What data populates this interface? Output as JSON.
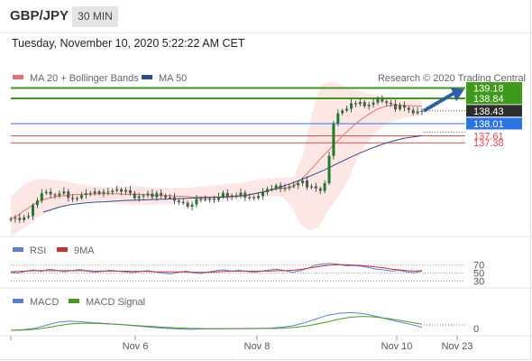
{
  "header": {
    "symbol": "GBP/JPY",
    "timeframe": "30 MIN",
    "datetime": "Tuesday, November 10, 2020 5:22:22 AM CET"
  },
  "colors": {
    "ma20": "#e57373",
    "ma50": "#2c4f8a",
    "bollinger_fill": "#fde3e1",
    "resistance": "#3f9a1c",
    "current": "#2d2d2d",
    "pivot": "#2a74e6",
    "support": "#e04b4b",
    "rsi": "#5b7fd6",
    "rsi_ma": "#cc2f2f",
    "macd": "#5b7fd6",
    "macd_signal": "#4c9a1c",
    "candle_up": "#1f7a2c",
    "candle_down": "#555555",
    "arrow": "#2c5fa8"
  },
  "chart_data": [
    {
      "type": "candlestick",
      "panel": "price",
      "legend": [
        {
          "name": "MA 20 + Bollinger Bands",
          "color": "#e57373"
        },
        {
          "name": "MA 50",
          "color": "#2c4f8a"
        }
      ],
      "legend_placement": "top-left",
      "credit": "Research © 2020 Trading Central",
      "levels": [
        {
          "value": 139.18,
          "label": "139.18",
          "kind": "resistance"
        },
        {
          "value": 138.84,
          "label": "138.84",
          "kind": "resistance"
        },
        {
          "value": 138.43,
          "label": "138.43",
          "kind": "current"
        },
        {
          "value": 138.01,
          "label": "138.01",
          "kind": "pivot"
        },
        {
          "value": 137.61,
          "label": "137.61",
          "kind": "support"
        },
        {
          "value": 137.38,
          "label": "137.38",
          "kind": "support"
        }
      ],
      "close": [
        134.88,
        134.91,
        134.84,
        134.93,
        134.97,
        135.33,
        135.48,
        135.72,
        135.77,
        135.68,
        135.64,
        135.71,
        135.78,
        135.57,
        135.53,
        135.56,
        135.66,
        135.72,
        135.72,
        135.78,
        135.71,
        135.77,
        135.75,
        135.8,
        135.85,
        135.77,
        135.82,
        135.72,
        135.56,
        135.62,
        135.65,
        135.71,
        135.59,
        135.73,
        135.65,
        135.58,
        135.59,
        135.48,
        135.43,
        135.41,
        135.28,
        135.35,
        135.53,
        135.5,
        135.53,
        135.54,
        135.5,
        135.6,
        135.73,
        135.59,
        135.65,
        135.62,
        135.74,
        135.58,
        135.59,
        135.56,
        135.63,
        135.75,
        135.86,
        135.87,
        135.98,
        135.87,
        135.89,
        135.94,
        135.98,
        136.05,
        136.14,
        135.91,
        135.95,
        135.88,
        135.8,
        136.05,
        136.95,
        138.02,
        138.35,
        138.44,
        138.5,
        138.68,
        138.65,
        138.72,
        138.58,
        138.63,
        138.7,
        138.82,
        138.74,
        138.69,
        138.66,
        138.48,
        138.62,
        138.53,
        138.46,
        138.35,
        138.41,
        138.43
      ],
      "ma20": [
        134.9,
        134.96,
        135.1,
        135.22,
        135.35,
        135.45,
        135.52,
        135.56,
        135.61,
        135.63,
        135.65,
        135.67,
        135.68,
        135.69,
        135.69,
        135.7,
        135.7,
        135.7,
        135.7,
        135.7,
        135.69,
        135.68,
        135.68,
        135.68,
        135.67,
        135.66,
        135.65,
        135.64,
        135.64,
        135.63,
        135.62,
        135.61,
        135.6,
        135.6,
        135.6,
        135.6,
        135.6,
        135.6,
        135.61,
        135.62,
        135.63,
        135.64,
        135.66,
        135.7,
        135.74,
        135.78,
        135.82,
        135.86,
        135.88,
        135.9,
        135.93,
        136.08,
        136.25,
        136.45,
        136.65,
        136.86,
        137.05,
        137.25,
        137.44,
        137.62,
        137.8,
        137.97,
        138.12,
        138.25,
        138.37,
        138.48,
        138.55,
        138.6,
        138.62,
        138.62,
        138.6,
        138.6,
        138.59,
        138.58
      ],
      "ma50": [
        135.1,
        135.19,
        135.28,
        135.34,
        135.38,
        135.41,
        135.43,
        135.44,
        135.46,
        135.48,
        135.49,
        135.5,
        135.51,
        135.52,
        135.53,
        135.54,
        135.55,
        135.56,
        135.57,
        135.58,
        135.59,
        135.6,
        135.62,
        135.65,
        135.7,
        135.76,
        135.84,
        135.93,
        136.03,
        136.14,
        136.25,
        136.37,
        136.5,
        136.64,
        136.78,
        136.92,
        137.05,
        137.17,
        137.28,
        137.38,
        137.46,
        137.53,
        137.57,
        137.61
      ],
      "bb_upper": [
        135.6,
        135.9,
        136.1,
        136.2,
        136.18,
        136.15,
        136.1,
        136.05,
        136.0,
        135.96,
        135.93,
        135.92,
        135.94,
        135.96,
        135.95,
        135.92,
        135.9,
        135.88,
        135.88,
        135.9,
        135.92,
        135.94,
        135.96,
        135.99,
        136.02,
        136.06,
        136.1,
        136.16,
        136.2,
        136.22,
        136.23,
        136.27,
        137.0,
        138.4,
        139.3,
        139.38,
        139.3,
        139.15,
        139.1,
        139.0,
        138.95,
        138.9,
        138.88,
        138.85,
        138.8,
        138.77
      ],
      "bb_lower": [
        134.3,
        134.5,
        134.7,
        134.95,
        135.1,
        135.25,
        135.35,
        135.4,
        135.45,
        135.47,
        135.45,
        135.4,
        135.36,
        135.34,
        135.33,
        135.33,
        135.35,
        135.37,
        135.4,
        135.43,
        135.46,
        135.48,
        135.5,
        135.52,
        135.53,
        135.55,
        135.57,
        135.59,
        135.62,
        135.6,
        135.3,
        134.7,
        134.5,
        134.6,
        135.2,
        135.6,
        136.1,
        136.8,
        137.3,
        137.7,
        137.95,
        138.1,
        138.2,
        138.25,
        138.28
      ],
      "xticks": [
        "Nov 6",
        "Nov 8",
        "Nov 10",
        "Nov 23"
      ]
    },
    {
      "type": "line",
      "panel": "rsi",
      "legend": [
        {
          "name": "RSI",
          "color": "#5b7fd6"
        },
        {
          "name": "9MA",
          "color": "#cc2f2f"
        }
      ],
      "ylim": [
        0,
        100
      ],
      "levels": [
        {
          "value": 70,
          "label": "70"
        },
        {
          "value": 50,
          "label": "50"
        },
        {
          "value": 30,
          "label": "30"
        }
      ],
      "series": [
        {
          "name": "RSI",
          "values": [
            52,
            50,
            55,
            58,
            54,
            60,
            57,
            53,
            56,
            59,
            55,
            52,
            54,
            57,
            55,
            53,
            51,
            54,
            56,
            53,
            50,
            48,
            52,
            55,
            51,
            49,
            53,
            56,
            58,
            55,
            57,
            54,
            52,
            55,
            58,
            60,
            56,
            52,
            56,
            62,
            70,
            73,
            74,
            72,
            68,
            69,
            67,
            64,
            60,
            58,
            55,
            57,
            53,
            51,
            55
          ]
        },
        {
          "name": "9MA",
          "values": [
            53,
            54,
            55,
            56,
            56,
            56,
            56,
            56,
            56,
            56,
            56,
            55,
            55,
            55,
            55,
            55,
            54,
            54,
            54,
            53,
            53,
            53,
            53,
            53,
            52,
            52,
            52,
            53,
            54,
            55,
            55,
            55,
            55,
            55,
            55,
            56,
            56,
            57,
            59,
            62,
            65,
            68,
            70,
            71,
            71,
            70,
            69,
            67,
            65,
            63,
            60,
            58,
            56,
            55,
            56
          ]
        }
      ]
    },
    {
      "type": "line",
      "panel": "macd",
      "legend": [
        {
          "name": "MACD",
          "color": "#5b7fd6"
        },
        {
          "name": "MACD Signal",
          "color": "#4c9a1c"
        }
      ],
      "levels": [
        {
          "value": 0,
          "label": "0"
        }
      ],
      "series": [
        {
          "name": "MACD",
          "values": [
            0.0,
            0.02,
            0.08,
            0.2,
            0.32,
            0.36,
            0.34,
            0.3,
            0.27,
            0.24,
            0.2,
            0.16,
            0.12,
            0.08,
            0.06,
            0.04,
            0.05,
            0.06,
            0.06,
            0.07,
            0.07,
            0.08,
            0.08,
            0.12,
            0.18,
            0.3,
            0.45,
            0.6,
            0.68,
            0.7,
            0.66,
            0.56,
            0.45,
            0.34,
            0.24,
            0.12
          ]
        },
        {
          "name": "MACD Signal",
          "values": [
            0.0,
            0.01,
            0.04,
            0.1,
            0.18,
            0.25,
            0.28,
            0.28,
            0.26,
            0.24,
            0.21,
            0.18,
            0.15,
            0.12,
            0.1,
            0.08,
            0.07,
            0.06,
            0.06,
            0.06,
            0.06,
            0.07,
            0.07,
            0.08,
            0.11,
            0.16,
            0.24,
            0.34,
            0.45,
            0.52,
            0.55,
            0.53,
            0.47,
            0.4,
            0.32,
            0.24
          ]
        }
      ]
    }
  ]
}
